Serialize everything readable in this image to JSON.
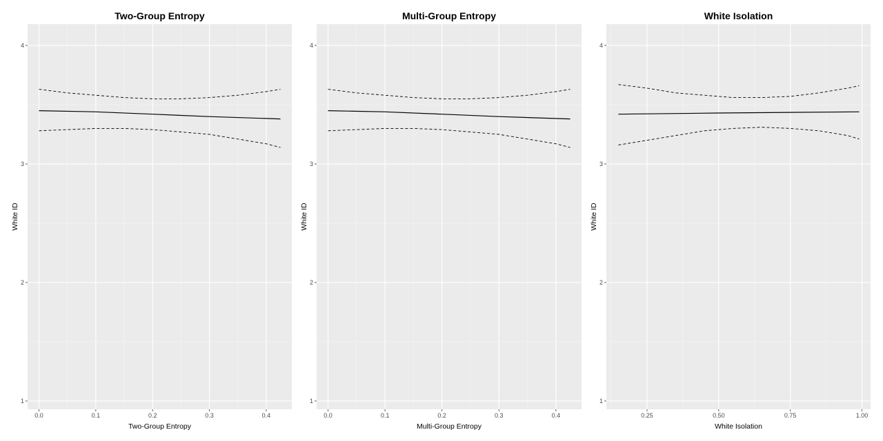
{
  "chart_data": [
    {
      "type": "line",
      "title": "Two-Group Entropy",
      "xlabel": "Two-Group Entropy",
      "ylabel": "White ID",
      "xlim": [
        -0.02,
        0.445
      ],
      "ylim": [
        0.93,
        4.18
      ],
      "x_ticks": [
        0.0,
        0.1,
        0.2,
        0.3,
        0.4
      ],
      "x_tick_labels": [
        "0.0",
        "0.1",
        "0.2",
        "0.3",
        "0.4"
      ],
      "y_ticks": [
        1,
        2,
        3,
        4
      ],
      "y_tick_labels": [
        "1",
        "2",
        "3",
        "4"
      ],
      "grid": true,
      "series": [
        {
          "style": "solid",
          "x": [
            0.0,
            0.1,
            0.2,
            0.3,
            0.425
          ],
          "y": [
            3.45,
            3.44,
            3.42,
            3.4,
            3.38
          ]
        },
        {
          "style": "dashed",
          "x": [
            0.0,
            0.05,
            0.1,
            0.15,
            0.2,
            0.25,
            0.3,
            0.35,
            0.4,
            0.425
          ],
          "y": [
            3.63,
            3.6,
            3.58,
            3.56,
            3.55,
            3.55,
            3.56,
            3.58,
            3.61,
            3.63
          ]
        },
        {
          "style": "dashed",
          "x": [
            0.0,
            0.05,
            0.1,
            0.15,
            0.2,
            0.25,
            0.3,
            0.35,
            0.4,
            0.425
          ],
          "y": [
            3.28,
            3.29,
            3.3,
            3.3,
            3.29,
            3.27,
            3.25,
            3.21,
            3.17,
            3.14
          ]
        }
      ]
    },
    {
      "type": "line",
      "title": "Multi-Group Entropy",
      "xlabel": "Multi-Group Entropy",
      "ylabel": "White ID",
      "xlim": [
        -0.02,
        0.445
      ],
      "ylim": [
        0.93,
        4.18
      ],
      "x_ticks": [
        0.0,
        0.1,
        0.2,
        0.3,
        0.4
      ],
      "x_tick_labels": [
        "0.0",
        "0.1",
        "0.2",
        "0.3",
        "0.4"
      ],
      "y_ticks": [
        1,
        2,
        3,
        4
      ],
      "y_tick_labels": [
        "1",
        "2",
        "3",
        "4"
      ],
      "grid": true,
      "series": [
        {
          "style": "solid",
          "x": [
            0.0,
            0.1,
            0.2,
            0.3,
            0.425
          ],
          "y": [
            3.45,
            3.44,
            3.42,
            3.4,
            3.38
          ]
        },
        {
          "style": "dashed",
          "x": [
            0.0,
            0.05,
            0.1,
            0.15,
            0.2,
            0.25,
            0.3,
            0.35,
            0.4,
            0.425
          ],
          "y": [
            3.63,
            3.6,
            3.58,
            3.56,
            3.55,
            3.55,
            3.56,
            3.58,
            3.61,
            3.63
          ]
        },
        {
          "style": "dashed",
          "x": [
            0.0,
            0.05,
            0.1,
            0.15,
            0.2,
            0.25,
            0.3,
            0.35,
            0.4,
            0.425
          ],
          "y": [
            3.28,
            3.29,
            3.3,
            3.3,
            3.29,
            3.27,
            3.25,
            3.21,
            3.17,
            3.14
          ]
        }
      ]
    },
    {
      "type": "line",
      "title": "White Isolation",
      "xlabel": "White Isolation",
      "ylabel": "White ID",
      "xlim": [
        0.108,
        1.03
      ],
      "ylim": [
        0.93,
        4.18
      ],
      "x_ticks": [
        0.25,
        0.5,
        0.75,
        1.0
      ],
      "x_tick_labels": [
        "0.25",
        "0.50",
        "0.75",
        "1.00"
      ],
      "y_ticks": [
        1,
        2,
        3,
        4
      ],
      "y_tick_labels": [
        "1",
        "2",
        "3",
        "4"
      ],
      "grid": true,
      "series": [
        {
          "style": "solid",
          "x": [
            0.15,
            0.5,
            0.99
          ],
          "y": [
            3.42,
            3.43,
            3.44
          ]
        },
        {
          "style": "dashed",
          "x": [
            0.15,
            0.25,
            0.35,
            0.45,
            0.55,
            0.65,
            0.75,
            0.85,
            0.95,
            0.99
          ],
          "y": [
            3.67,
            3.64,
            3.6,
            3.58,
            3.56,
            3.56,
            3.57,
            3.6,
            3.64,
            3.66
          ]
        },
        {
          "style": "dashed",
          "x": [
            0.15,
            0.25,
            0.35,
            0.45,
            0.55,
            0.65,
            0.75,
            0.85,
            0.95,
            0.99
          ],
          "y": [
            3.16,
            3.2,
            3.24,
            3.28,
            3.3,
            3.31,
            3.3,
            3.28,
            3.24,
            3.21
          ]
        }
      ]
    }
  ]
}
